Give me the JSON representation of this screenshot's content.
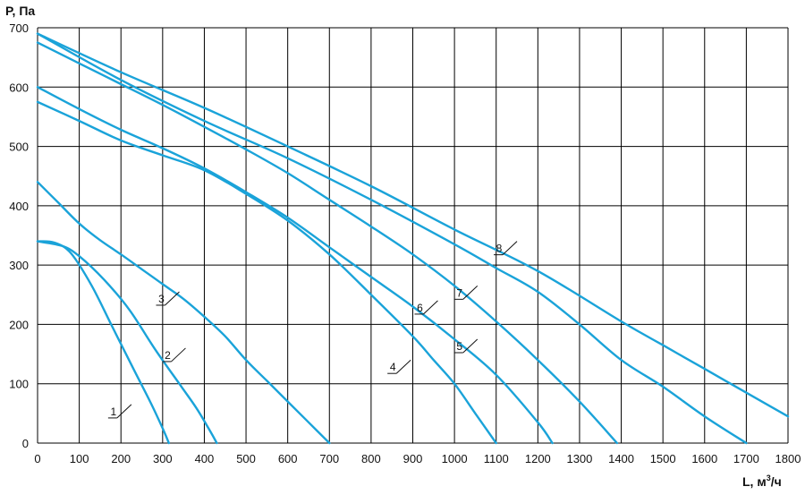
{
  "chart_data": {
    "type": "line",
    "ylabel": "P, Па",
    "xlabel": "L, м³/ч",
    "xlabel_main": "L, м",
    "xlabel_sup": "3",
    "xlabel_tail": "/ч",
    "xlim": [
      0,
      1800
    ],
    "ylim": [
      0,
      700
    ],
    "x_ticks": [
      0,
      100,
      200,
      300,
      400,
      500,
      600,
      700,
      800,
      900,
      1000,
      1100,
      1200,
      1300,
      1400,
      1500,
      1600,
      1700,
      1800
    ],
    "y_ticks": [
      0,
      100,
      200,
      300,
      400,
      500,
      600,
      700
    ],
    "grid": true,
    "line_color": "#1aa3d9",
    "grid_color": "#000000",
    "series": [
      {
        "name": "1",
        "label_at": [
          225,
          65
        ],
        "points": [
          [
            0,
            340
          ],
          [
            40,
            338
          ],
          [
            80,
            320
          ],
          [
            130,
            265
          ],
          [
            180,
            195
          ],
          [
            230,
            125
          ],
          [
            270,
            70
          ],
          [
            300,
            25
          ],
          [
            315,
            0
          ]
        ]
      },
      {
        "name": "2",
        "label_at": [
          355,
          160
        ],
        "points": [
          [
            0,
            340
          ],
          [
            60,
            332
          ],
          [
            100,
            315
          ],
          [
            160,
            275
          ],
          [
            220,
            225
          ],
          [
            280,
            160
          ],
          [
            340,
            100
          ],
          [
            380,
            60
          ],
          [
            410,
            25
          ],
          [
            430,
            0
          ]
        ]
      },
      {
        "name": "3",
        "label_at": [
          340,
          255
        ],
        "points": [
          [
            0,
            440
          ],
          [
            50,
            405
          ],
          [
            100,
            370
          ],
          [
            150,
            342
          ],
          [
            200,
            318
          ],
          [
            250,
            293
          ],
          [
            300,
            268
          ],
          [
            350,
            243
          ],
          [
            400,
            213
          ],
          [
            450,
            180
          ],
          [
            500,
            140
          ],
          [
            550,
            105
          ],
          [
            600,
            70
          ],
          [
            650,
            35
          ],
          [
            700,
            0
          ]
        ]
      },
      {
        "name": "4",
        "label_at": [
          895,
          140
        ],
        "points": [
          [
            0,
            575
          ],
          [
            100,
            543
          ],
          [
            200,
            510
          ],
          [
            300,
            485
          ],
          [
            400,
            460
          ],
          [
            500,
            420
          ],
          [
            600,
            375
          ],
          [
            700,
            318
          ],
          [
            800,
            250
          ],
          [
            900,
            180
          ],
          [
            950,
            140
          ],
          [
            1000,
            100
          ],
          [
            1050,
            50
          ],
          [
            1100,
            0
          ]
        ]
      },
      {
        "name": "5",
        "label_at": [
          1055,
          175
        ],
        "points": [
          [
            0,
            600
          ],
          [
            100,
            563
          ],
          [
            200,
            528
          ],
          [
            300,
            497
          ],
          [
            400,
            463
          ],
          [
            500,
            423
          ],
          [
            600,
            380
          ],
          [
            700,
            330
          ],
          [
            800,
            280
          ],
          [
            900,
            230
          ],
          [
            1000,
            175
          ],
          [
            1100,
            115
          ],
          [
            1200,
            35
          ],
          [
            1235,
            0
          ]
        ]
      },
      {
        "name": "6",
        "label_at": [
          960,
          240
        ],
        "points": [
          [
            0,
            675
          ],
          [
            100,
            640
          ],
          [
            200,
            605
          ],
          [
            300,
            570
          ],
          [
            400,
            533
          ],
          [
            500,
            495
          ],
          [
            600,
            455
          ],
          [
            700,
            410
          ],
          [
            800,
            365
          ],
          [
            900,
            318
          ],
          [
            1000,
            265
          ],
          [
            1100,
            205
          ],
          [
            1200,
            140
          ],
          [
            1300,
            70
          ],
          [
            1390,
            0
          ]
        ]
      },
      {
        "name": "7",
        "label_at": [
          1055,
          265
        ],
        "points": [
          [
            0,
            690
          ],
          [
            200,
            612
          ],
          [
            400,
            543
          ],
          [
            600,
            480
          ],
          [
            800,
            410
          ],
          [
            1000,
            335
          ],
          [
            1100,
            295
          ],
          [
            1200,
            255
          ],
          [
            1300,
            200
          ],
          [
            1400,
            140
          ],
          [
            1500,
            95
          ],
          [
            1600,
            45
          ],
          [
            1700,
            0
          ]
        ]
      },
      {
        "name": "8",
        "label_at": [
          1150,
          340
        ],
        "points": [
          [
            0,
            690
          ],
          [
            200,
            625
          ],
          [
            400,
            565
          ],
          [
            600,
            500
          ],
          [
            800,
            433
          ],
          [
            1000,
            360
          ],
          [
            1200,
            290
          ],
          [
            1400,
            205
          ],
          [
            1500,
            165
          ],
          [
            1600,
            125
          ],
          [
            1700,
            85
          ],
          [
            1800,
            45
          ]
        ]
      }
    ]
  }
}
